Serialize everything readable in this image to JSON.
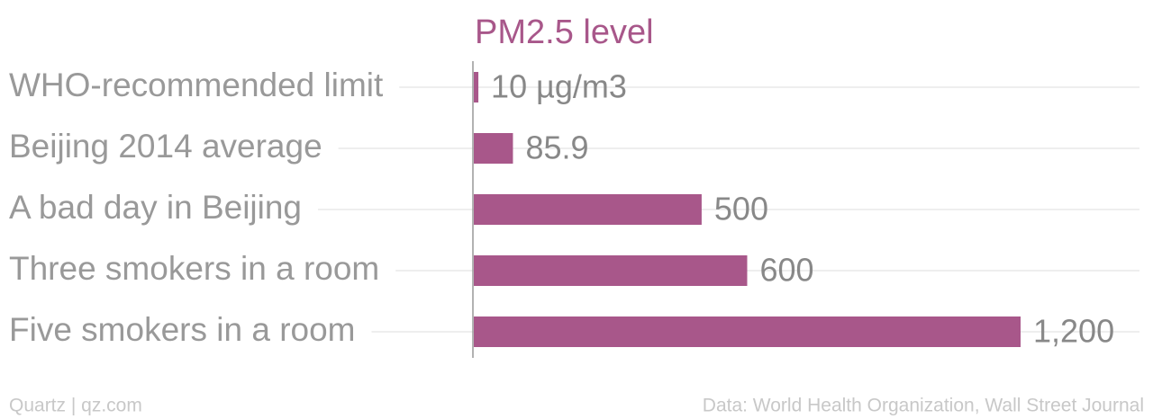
{
  "chart_data": {
    "type": "bar",
    "orientation": "horizontal",
    "title": "PM2.5 level",
    "categories": [
      "WHO-recommended limit",
      "Beijing 2014 average",
      "A bad day in Beijing",
      "Three smokers in a room",
      "Five smokers in a room"
    ],
    "values": [
      10,
      85.9,
      500,
      600,
      1200
    ],
    "value_labels": [
      "10 µg/m3",
      "85.9",
      "500",
      "600",
      "1,200"
    ],
    "color": "#a8578a",
    "grid": true,
    "footer_left": "Quartz | qz.com",
    "footer_right": "Data: World Health Organization, Wall Street Journal"
  }
}
